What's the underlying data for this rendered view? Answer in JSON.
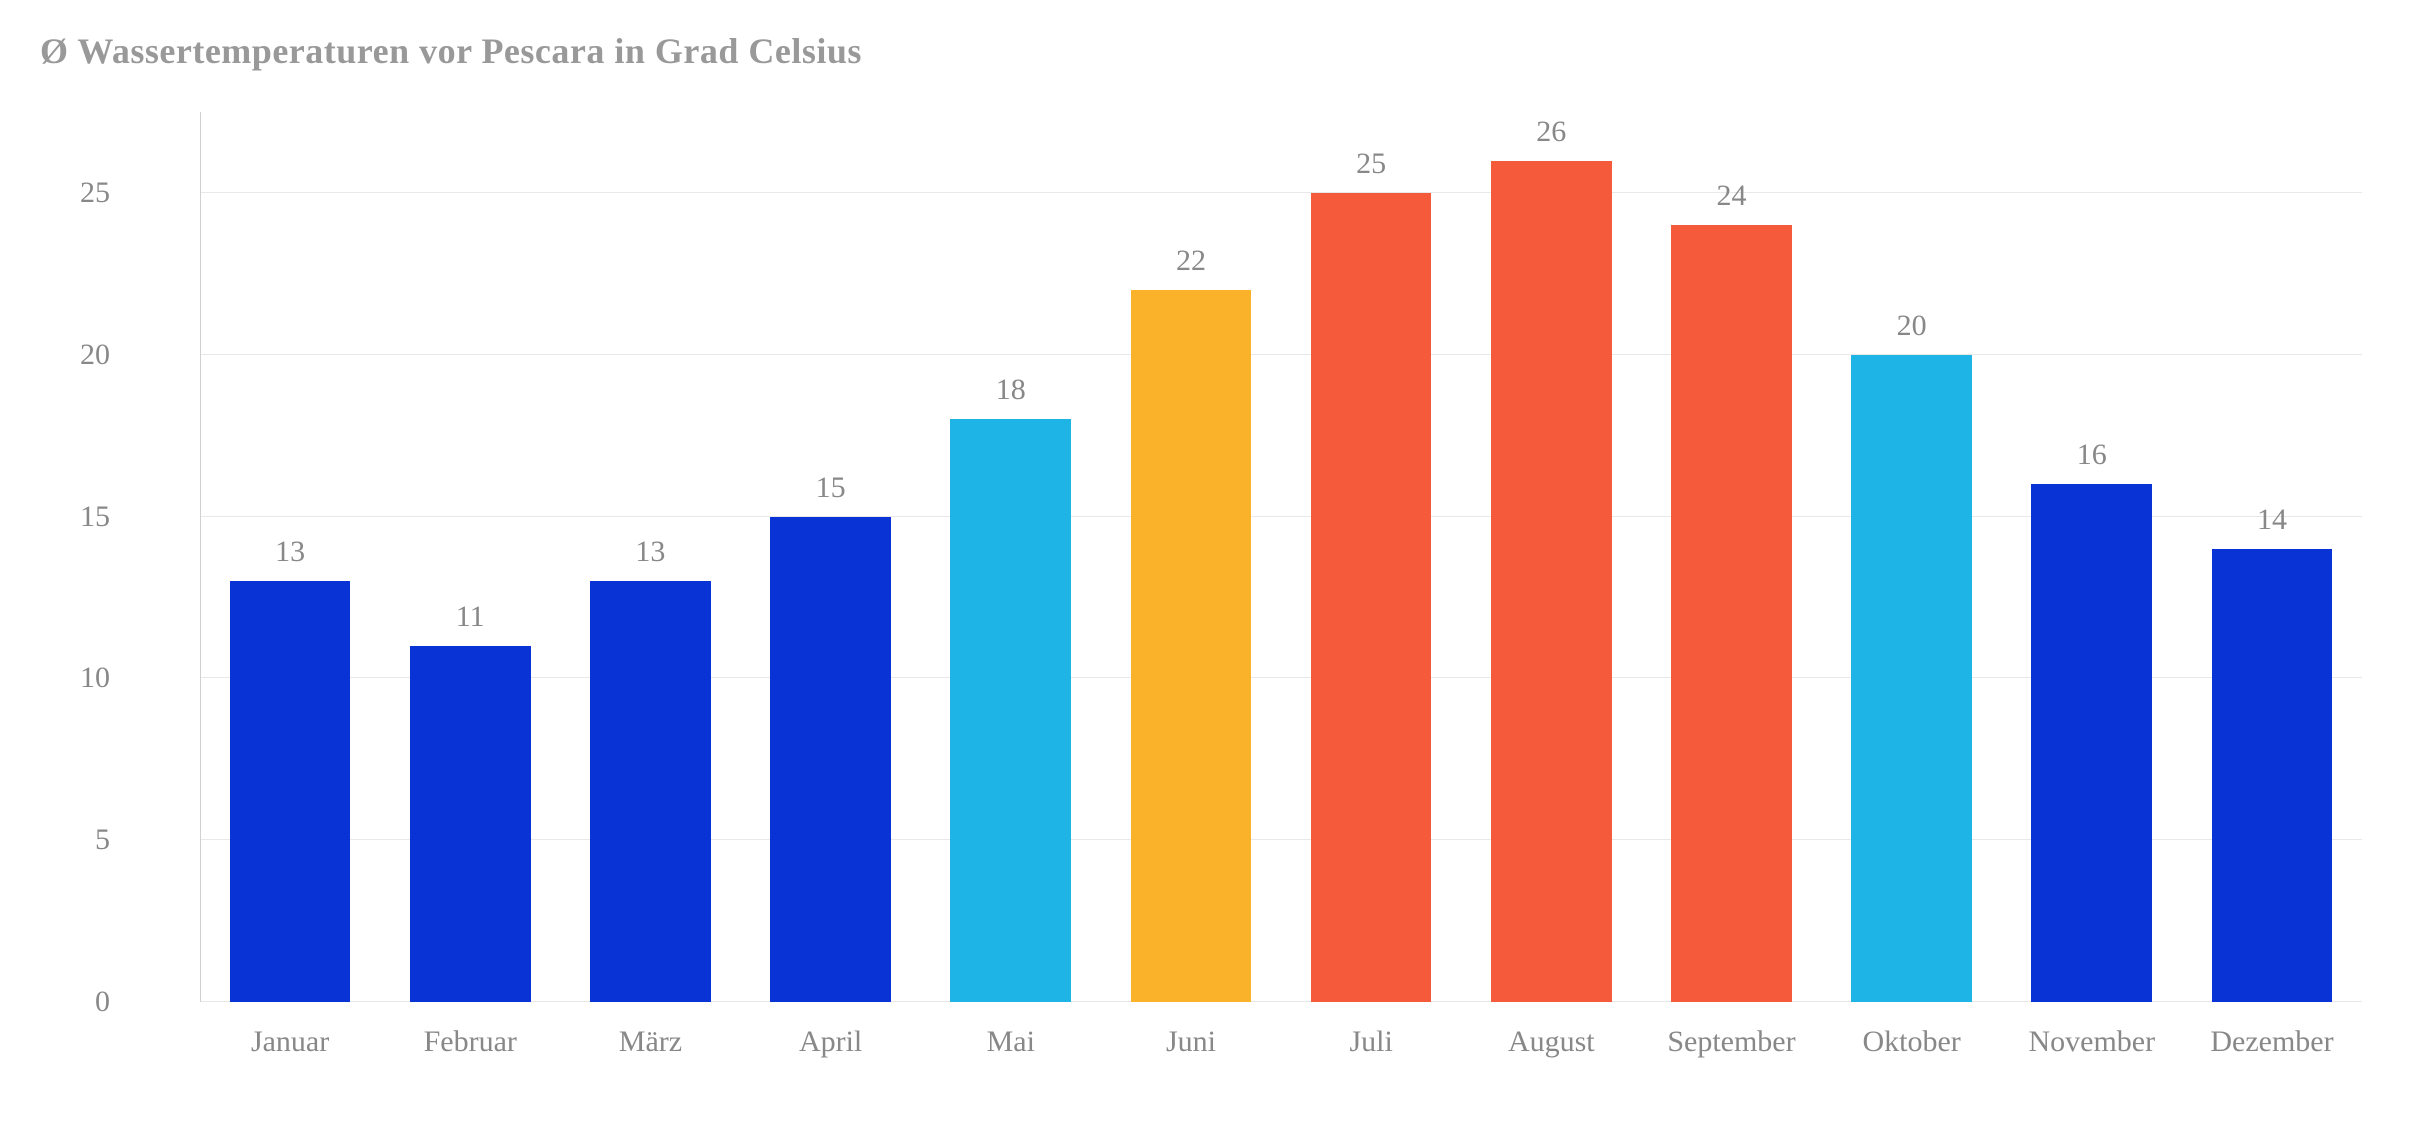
{
  "chart": {
    "type": "bar",
    "title": "Ø Wassertemperaturen vor Pescara in Grad Celsius",
    "title_color": "#999999",
    "title_fontsize": 36,
    "categories": [
      "Januar",
      "Februar",
      "März",
      "April",
      "Mai",
      "Juni",
      "Juli",
      "August",
      "September",
      "Oktober",
      "November",
      "Dezember"
    ],
    "values": [
      13,
      11,
      13,
      15,
      18,
      22,
      25,
      26,
      24,
      20,
      16,
      14
    ],
    "bar_colors": [
      "#0a33d6",
      "#0a33d6",
      "#0a33d6",
      "#0a33d6",
      "#1fb4e6",
      "#f9b22a",
      "#f55a3b",
      "#f55a3b",
      "#f55a3b",
      "#1fb4e6",
      "#0a33d6",
      "#0a33d6"
    ],
    "ylim": [
      0,
      27.5
    ],
    "ytick_values": [
      0,
      5,
      10,
      15,
      20,
      25
    ],
    "ytick_labels": [
      "0",
      "5",
      "10",
      "15",
      "20",
      "25"
    ],
    "background_color": "#ffffff",
    "grid_color": "#e8e8e8",
    "axis_label_color": "#888888",
    "value_label_color": "#888888",
    "axis_label_fontsize": 30,
    "value_label_fontsize": 30,
    "bar_width_ratio": 0.67,
    "font_family": "Georgia, 'Times New Roman', serif"
  }
}
